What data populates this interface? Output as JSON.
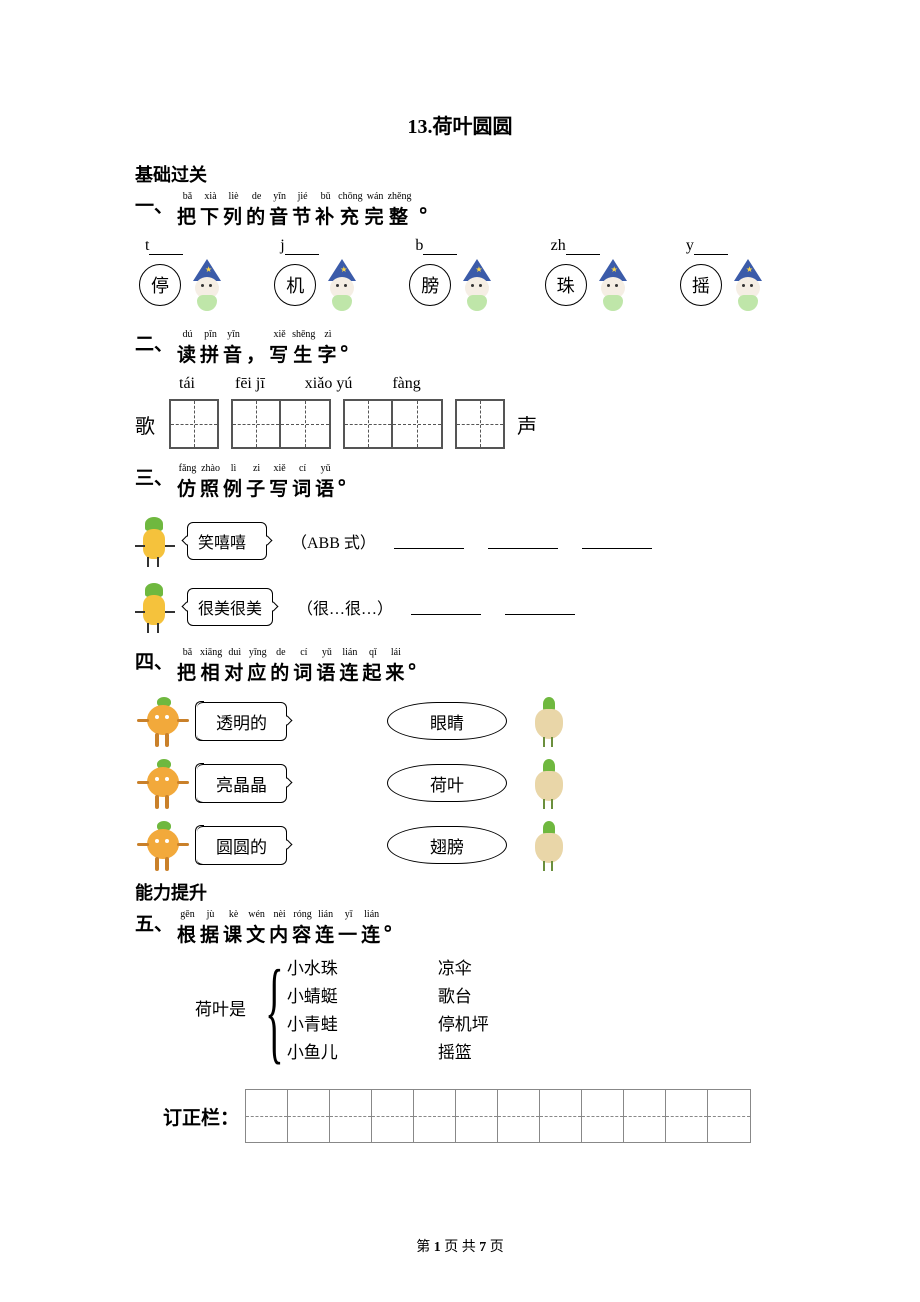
{
  "title": "13.荷叶圆圆",
  "section_basic_label": "基础过关",
  "section1": {
    "prefix": "一、",
    "ruby": [
      {
        "rt": "bǎ",
        "rb": "把"
      },
      {
        "rt": "xià",
        "rb": "下"
      },
      {
        "rt": "liè",
        "rb": "列"
      },
      {
        "rt": "de",
        "rb": "的"
      },
      {
        "rt": "yīn",
        "rb": "音"
      },
      {
        "rt": "jié",
        "rb": "节"
      },
      {
        "rt": "bǔ",
        "rb": "补"
      },
      {
        "rt": "chōng",
        "rb": "充"
      },
      {
        "rt": "wán",
        "rb": "完"
      },
      {
        "rt": "zhěng",
        "rb": "整"
      }
    ],
    "tail": "。",
    "items": [
      {
        "initial": "t",
        "char": "停"
      },
      {
        "initial": "j",
        "char": "机"
      },
      {
        "initial": "b",
        "char": "膀"
      },
      {
        "initial": "zh",
        "char": "珠"
      },
      {
        "initial": "y",
        "char": "摇"
      }
    ]
  },
  "section2": {
    "prefix": "二、",
    "ruby": [
      {
        "rt": "dú",
        "rb": "读"
      },
      {
        "rt": "pīn",
        "rb": "拼"
      },
      {
        "rt": "yīn",
        "rb": "音"
      },
      {
        "rt": "",
        "rb": "，"
      },
      {
        "rt": "xiě",
        "rb": "写"
      },
      {
        "rt": "shēng",
        "rb": "生"
      },
      {
        "rt": "zì",
        "rb": "字"
      }
    ],
    "tail": "。",
    "pinyin": [
      "tái",
      "fēi  jī",
      "xiǎo  yú",
      "fàng"
    ],
    "lead_left": "歌",
    "lead_right": "声",
    "groups": [
      1,
      2,
      2,
      1
    ]
  },
  "section3": {
    "prefix": "三、",
    "ruby": [
      {
        "rt": "fǎng",
        "rb": "仿"
      },
      {
        "rt": "zhào",
        "rb": "照"
      },
      {
        "rt": "lì",
        "rb": "例"
      },
      {
        "rt": "zi",
        "rb": "子"
      },
      {
        "rt": "xiě",
        "rb": "写"
      },
      {
        "rt": "cí",
        "rb": "词"
      },
      {
        "rt": "yǔ",
        "rb": "语"
      }
    ],
    "tail": "。",
    "rows": [
      {
        "example": "笑嘻嘻",
        "pattern": "（ABB 式）",
        "blanks": 3
      },
      {
        "example": "很美很美",
        "pattern": "（很…很…）",
        "blanks": 2
      }
    ]
  },
  "section4": {
    "prefix": "四、",
    "ruby": [
      {
        "rt": "bǎ",
        "rb": "把"
      },
      {
        "rt": "xiāng",
        "rb": "相"
      },
      {
        "rt": "duì",
        "rb": "对"
      },
      {
        "rt": "yīng",
        "rb": "应"
      },
      {
        "rt": "de",
        "rb": "的"
      },
      {
        "rt": "cí",
        "rb": "词"
      },
      {
        "rt": "yǔ",
        "rb": "语"
      },
      {
        "rt": "lián",
        "rb": "连"
      },
      {
        "rt": "qǐ",
        "rb": "起"
      },
      {
        "rt": "lái",
        "rb": "来"
      }
    ],
    "tail": "。",
    "pairs": [
      {
        "left": "透明的",
        "right": "眼睛"
      },
      {
        "left": "亮晶晶",
        "right": "荷叶"
      },
      {
        "left": "圆圆的",
        "right": "翅膀"
      }
    ]
  },
  "section_ability_label": "能力提升",
  "section5": {
    "prefix": "五、",
    "ruby": [
      {
        "rt": "gēn",
        "rb": "根"
      },
      {
        "rt": "jù",
        "rb": "据"
      },
      {
        "rt": "kè",
        "rb": "课"
      },
      {
        "rt": "wén",
        "rb": "文"
      },
      {
        "rt": "nèi",
        "rb": "内"
      },
      {
        "rt": "róng",
        "rb": "容"
      },
      {
        "rt": "lián",
        "rb": "连"
      },
      {
        "rt": "yī",
        "rb": "一"
      },
      {
        "rt": "lián",
        "rb": "连"
      }
    ],
    "tail": "。",
    "stem": "荷叶是",
    "left": [
      "小水珠",
      "小蜻蜓",
      "小青蛙",
      "小鱼儿"
    ],
    "right": [
      "凉伞",
      "歌台",
      "停机坪",
      "摇篮"
    ]
  },
  "correction_label": "订正栏：",
  "correction_cells": 12,
  "footer_prefix": "第",
  "footer_cur": "1",
  "footer_mid": "页 共",
  "footer_total": "7",
  "footer_suffix": "页"
}
